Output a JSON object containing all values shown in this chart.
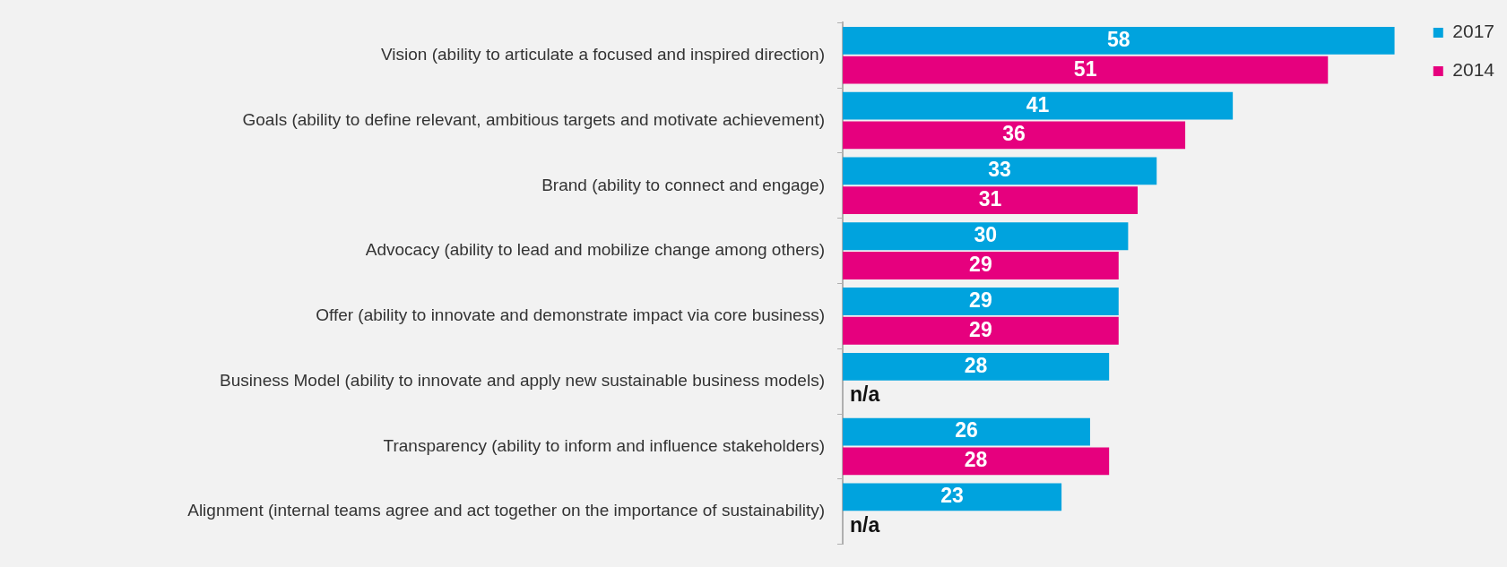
{
  "chart_data": {
    "type": "bar",
    "orientation": "horizontal",
    "categories": [
      "Vision (ability to articulate a focused and inspired direction)",
      "Goals (ability to define relevant, ambitious targets and motivate achievement)",
      "Brand (ability to connect and engage)",
      "Advocacy (ability to lead and mobilize change among others)",
      "Offer (ability to innovate and demonstrate impact via core business)",
      "Business Model (ability to innovate and apply new sustainable business models)",
      "Transparency (ability to inform and influence stakeholders)",
      "Alignment (internal teams agree and act together on the importance of sustainability)"
    ],
    "series": [
      {
        "name": "2017",
        "color": "#00a3de",
        "values": [
          58,
          41,
          33,
          30,
          29,
          28,
          26,
          23
        ],
        "value_labels": [
          "58",
          "41",
          "33",
          "30",
          "29",
          "28",
          "26",
          "23"
        ]
      },
      {
        "name": "2014",
        "color": "#e6007e",
        "values": [
          51,
          36,
          31,
          29,
          29,
          null,
          28,
          null
        ],
        "value_labels": [
          "51",
          "36",
          "31",
          "29",
          "29",
          "n/a",
          "28",
          "n/a"
        ]
      }
    ],
    "tick_labels": "y",
    "legend": "top right"
  }
}
